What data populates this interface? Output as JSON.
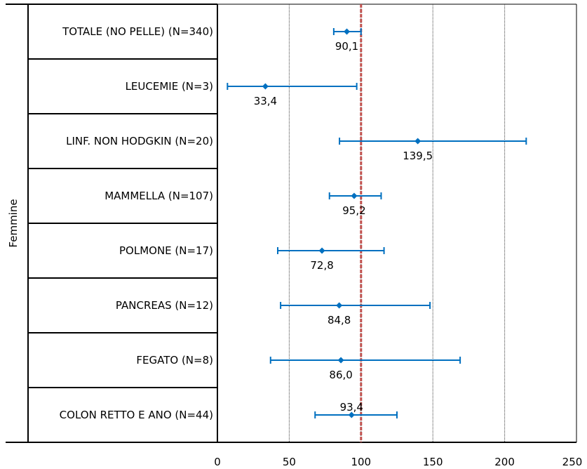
{
  "chart_data": {
    "type": "scatter",
    "subtype": "forest-plot",
    "group_label": "Femmine",
    "categories": [
      "TOTALE (NO PELLE) (N=340)",
      "LEUCEMIE (N=3)",
      "LINF. NON HODGKIN (N=20)",
      "MAMMELLA (N=107)",
      "POLMONE (N=17)",
      "PANCREAS (N=12)",
      "FEGATO (N=8)",
      "COLON RETTO E ANO (N=44)"
    ],
    "series": [
      {
        "values": [
          90.1,
          33.4,
          139.5,
          95.2,
          72.8,
          84.8,
          86.0,
          93.4
        ],
        "labels": [
          "90,1",
          "33,4",
          "139,5",
          "95,2",
          "72,8",
          "84,8",
          "86,0",
          "93,4"
        ],
        "ci_lower": [
          81,
          7,
          85,
          78,
          42,
          44,
          37,
          68
        ],
        "ci_upper": [
          100,
          97,
          215,
          114,
          116,
          148,
          169,
          125
        ]
      }
    ],
    "reference_line": 100,
    "xlim": [
      0,
      250
    ],
    "xticks": [
      "0",
      "50",
      "100",
      "150",
      "200",
      "250"
    ],
    "grid": "vertical",
    "colors": {
      "points": "#0070C0",
      "reference_line": "#C0504D",
      "grid": "#404040"
    }
  }
}
